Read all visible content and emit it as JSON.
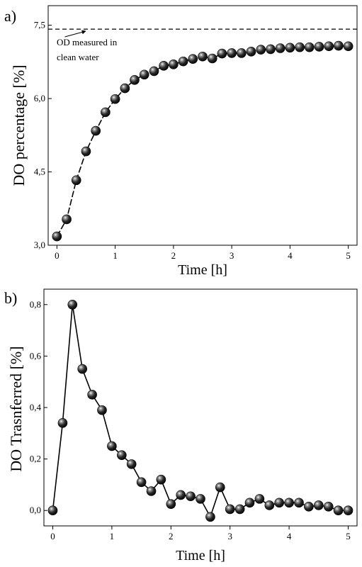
{
  "chart_data": [
    {
      "panel": "a)",
      "type": "line",
      "xlabel": "Time [h]",
      "ylabel": "DO percentage [%]",
      "xlim": [
        -0.15,
        5.15
      ],
      "ylim": [
        3.0,
        7.9
      ],
      "xticks": [
        {
          "v": 0,
          "label": "0"
        },
        {
          "v": 1,
          "label": "1"
        },
        {
          "v": 2,
          "label": "2"
        },
        {
          "v": 3,
          "label": "3"
        },
        {
          "v": 4,
          "label": "4"
        },
        {
          "v": 5,
          "label": "5"
        }
      ],
      "yticks": [
        {
          "v": 3.0,
          "label": "3,0"
        },
        {
          "v": 4.5,
          "label": "4,5"
        },
        {
          "v": 6.0,
          "label": "6,0"
        },
        {
          "v": 7.5,
          "label": "7,5"
        }
      ],
      "reference_line": {
        "y": 7.42,
        "style": "dashed"
      },
      "annotation": {
        "lines": [
          "OD measured in",
          "clean water"
        ],
        "arrow_to_x": 0.5
      },
      "x": [
        0,
        0.167,
        0.333,
        0.5,
        0.667,
        0.833,
        1.0,
        1.167,
        1.333,
        1.5,
        1.667,
        1.833,
        2.0,
        2.167,
        2.333,
        2.5,
        2.667,
        2.833,
        3.0,
        3.167,
        3.333,
        3.5,
        3.667,
        3.833,
        4.0,
        4.167,
        4.333,
        4.5,
        4.667,
        4.833,
        5.0
      ],
      "y": [
        3.18,
        3.53,
        4.33,
        4.92,
        5.34,
        5.72,
        5.99,
        6.21,
        6.38,
        6.49,
        6.56,
        6.67,
        6.7,
        6.76,
        6.81,
        6.86,
        6.82,
        6.92,
        6.93,
        6.93,
        6.96,
        7.0,
        7.01,
        7.03,
        7.04,
        7.05,
        7.05,
        7.06,
        7.07,
        7.08,
        7.07
      ]
    },
    {
      "panel": "b)",
      "type": "line",
      "xlabel": "Time [h]",
      "ylabel": "DO Trasnferred [%]",
      "xlim": [
        -0.15,
        5.15
      ],
      "ylim": [
        -0.06,
        0.86
      ],
      "xticks": [
        {
          "v": 0,
          "label": "0"
        },
        {
          "v": 1,
          "label": "1"
        },
        {
          "v": 2,
          "label": "2"
        },
        {
          "v": 3,
          "label": "3"
        },
        {
          "v": 4,
          "label": "4"
        },
        {
          "v": 5,
          "label": "5"
        }
      ],
      "yticks": [
        {
          "v": 0.0,
          "label": "0,0"
        },
        {
          "v": 0.2,
          "label": "0,2"
        },
        {
          "v": 0.4,
          "label": "0,4"
        },
        {
          "v": 0.6,
          "label": "0,6"
        },
        {
          "v": 0.8,
          "label": "0,8"
        }
      ],
      "x": [
        0,
        0.167,
        0.333,
        0.5,
        0.667,
        0.833,
        1.0,
        1.167,
        1.333,
        1.5,
        1.667,
        1.833,
        2.0,
        2.167,
        2.333,
        2.5,
        2.667,
        2.833,
        3.0,
        3.167,
        3.333,
        3.5,
        3.667,
        3.833,
        4.0,
        4.167,
        4.333,
        4.5,
        4.667,
        4.833,
        5.0
      ],
      "y": [
        0.0,
        0.34,
        0.8,
        0.55,
        0.45,
        0.39,
        0.25,
        0.215,
        0.18,
        0.11,
        0.075,
        0.12,
        0.025,
        0.06,
        0.055,
        0.045,
        -0.025,
        0.09,
        0.005,
        0.005,
        0.03,
        0.045,
        0.02,
        0.03,
        0.03,
        0.03,
        0.015,
        0.02,
        0.015,
        0.0,
        0.0
      ]
    }
  ]
}
